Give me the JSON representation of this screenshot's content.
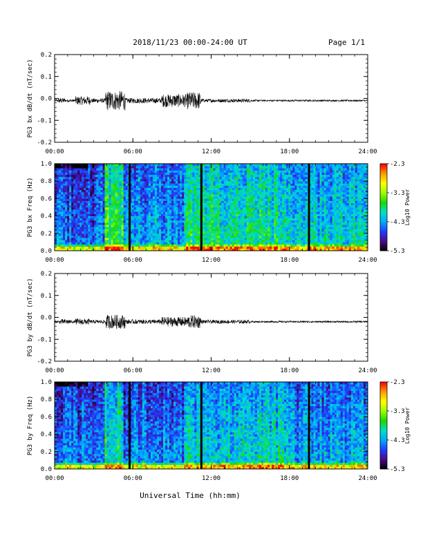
{
  "header": {
    "title": "2018/11/23  00:00-24:00 UT",
    "page": "Page 1/1"
  },
  "footer": {
    "xlabel": "Universal Time (hh:mm)"
  },
  "colors": {
    "colormap": [
      "#000000",
      "#4a0a8a",
      "#1f3cff",
      "#00a8ff",
      "#00e0c8",
      "#19d900",
      "#9cff00",
      "#ffff00",
      "#ff9a00",
      "#ff0000"
    ],
    "trace": "#000000"
  },
  "chart_data": [
    {
      "type": "line",
      "title": "",
      "ylabel": "PG3 bx dB/dt (nT/sec)",
      "xlabel": "",
      "xlim": [
        0,
        24
      ],
      "ylim": [
        -0.2,
        0.2
      ],
      "xticks": [
        "00:00",
        "06:00",
        "12:00",
        "18:00",
        "24:00"
      ],
      "yticks": [
        "-0.2",
        "-0.1",
        "0.0",
        "0.1",
        "0.2"
      ],
      "series": [
        {
          "values_note": "",
          "baseline": -0.01,
          "envelope": [
            {
              "x": [
                0.0,
                2.0
              ],
              "amp": 0.006
            },
            {
              "x": [
                0.3,
                0.8
              ],
              "amp": 0.012
            },
            {
              "x": [
                1.6,
                2.7
              ],
              "amp": 0.02
            },
            {
              "x": [
                2.7,
                3.9
              ],
              "amp": 0.01
            },
            {
              "x": [
                3.9,
                5.4
              ],
              "amp": 0.045
            },
            {
              "x": [
                5.4,
                8.2
              ],
              "amp": 0.012
            },
            {
              "x": [
                8.2,
                10.2
              ],
              "amp": 0.03
            },
            {
              "x": [
                10.2,
                11.2
              ],
              "amp": 0.04
            },
            {
              "x": [
                11.2,
                15.0
              ],
              "amp": 0.008
            },
            {
              "x": [
                15.0,
                24.0
              ],
              "amp": 0.004
            }
          ]
        }
      ]
    },
    {
      "type": "heatmap",
      "title": "",
      "ylabel": "PG3 bx Freq (Hz)",
      "colorbar_label": "Log10 Power",
      "xlim": [
        0,
        24
      ],
      "ylim": [
        0.0,
        1.0
      ],
      "clim": [
        -5.3,
        -2.3
      ],
      "xticks": [
        "00:00",
        "06:00",
        "12:00",
        "18:00",
        "24:00"
      ],
      "yticks": [
        "0.0",
        "0.2",
        "0.4",
        "0.6",
        "0.8",
        "1.0"
      ],
      "cticks": [
        "-2.3",
        "-3.3",
        "-4.3",
        "-5.3"
      ],
      "gaps_hours": [
        5.75,
        11.25,
        19.5
      ],
      "regions": [
        {
          "x": [
            0.0,
            5.5
          ],
          "level": -4.6
        },
        {
          "x": [
            3.9,
            5.3
          ],
          "level": -3.7
        },
        {
          "x": [
            5.5,
            10.0
          ],
          "level": -4.2
        },
        {
          "x": [
            10.0,
            18.0
          ],
          "level": -3.8
        },
        {
          "x": [
            18.0,
            24.0
          ],
          "level": -4.0
        }
      ]
    },
    {
      "type": "line",
      "title": "",
      "ylabel": "PG3 by dB/dt (nT/sec)",
      "xlabel": "",
      "xlim": [
        0,
        24
      ],
      "ylim": [
        -0.2,
        0.2
      ],
      "xticks": [
        "00:00",
        "06:00",
        "12:00",
        "18:00",
        "24:00"
      ],
      "yticks": [
        "-0.2",
        "-0.1",
        "0.0",
        "0.1",
        "0.2"
      ],
      "series": [
        {
          "baseline": -0.02,
          "envelope": [
            {
              "x": [
                0.0,
                2.0
              ],
              "amp": 0.006
            },
            {
              "x": [
                0.4,
                1.2
              ],
              "amp": 0.012
            },
            {
              "x": [
                1.6,
                2.7
              ],
              "amp": 0.014
            },
            {
              "x": [
                2.7,
                3.9
              ],
              "amp": 0.008
            },
            {
              "x": [
                3.9,
                5.4
              ],
              "amp": 0.032
            },
            {
              "x": [
                5.4,
                8.2
              ],
              "amp": 0.01
            },
            {
              "x": [
                8.2,
                10.2
              ],
              "amp": 0.022
            },
            {
              "x": [
                10.2,
                11.2
              ],
              "amp": 0.03
            },
            {
              "x": [
                11.2,
                15.0
              ],
              "amp": 0.008
            },
            {
              "x": [
                15.0,
                24.0
              ],
              "amp": 0.004
            }
          ]
        }
      ]
    },
    {
      "type": "heatmap",
      "title": "",
      "ylabel": "PG3 by Freq (Hz)",
      "colorbar_label": "Log10 Power",
      "xlim": [
        0,
        24
      ],
      "ylim": [
        0.0,
        1.0
      ],
      "clim": [
        -5.3,
        -2.3
      ],
      "xticks": [
        "00:00",
        "06:00",
        "12:00",
        "18:00",
        "24:00"
      ],
      "yticks": [
        "0.0",
        "0.2",
        "0.4",
        "0.6",
        "0.8",
        "1.0"
      ],
      "cticks": [
        "-2.3",
        "-3.3",
        "-4.3",
        "-5.3"
      ],
      "gaps_hours": [
        5.75,
        11.25,
        19.5
      ],
      "regions": [
        {
          "x": [
            0.0,
            5.5
          ],
          "level": -4.7
        },
        {
          "x": [
            3.9,
            5.3
          ],
          "level": -3.8
        },
        {
          "x": [
            5.5,
            10.0
          ],
          "level": -4.3
        },
        {
          "x": [
            10.0,
            18.0
          ],
          "level": -4.0
        },
        {
          "x": [
            18.0,
            24.0
          ],
          "level": -4.2
        }
      ]
    }
  ]
}
